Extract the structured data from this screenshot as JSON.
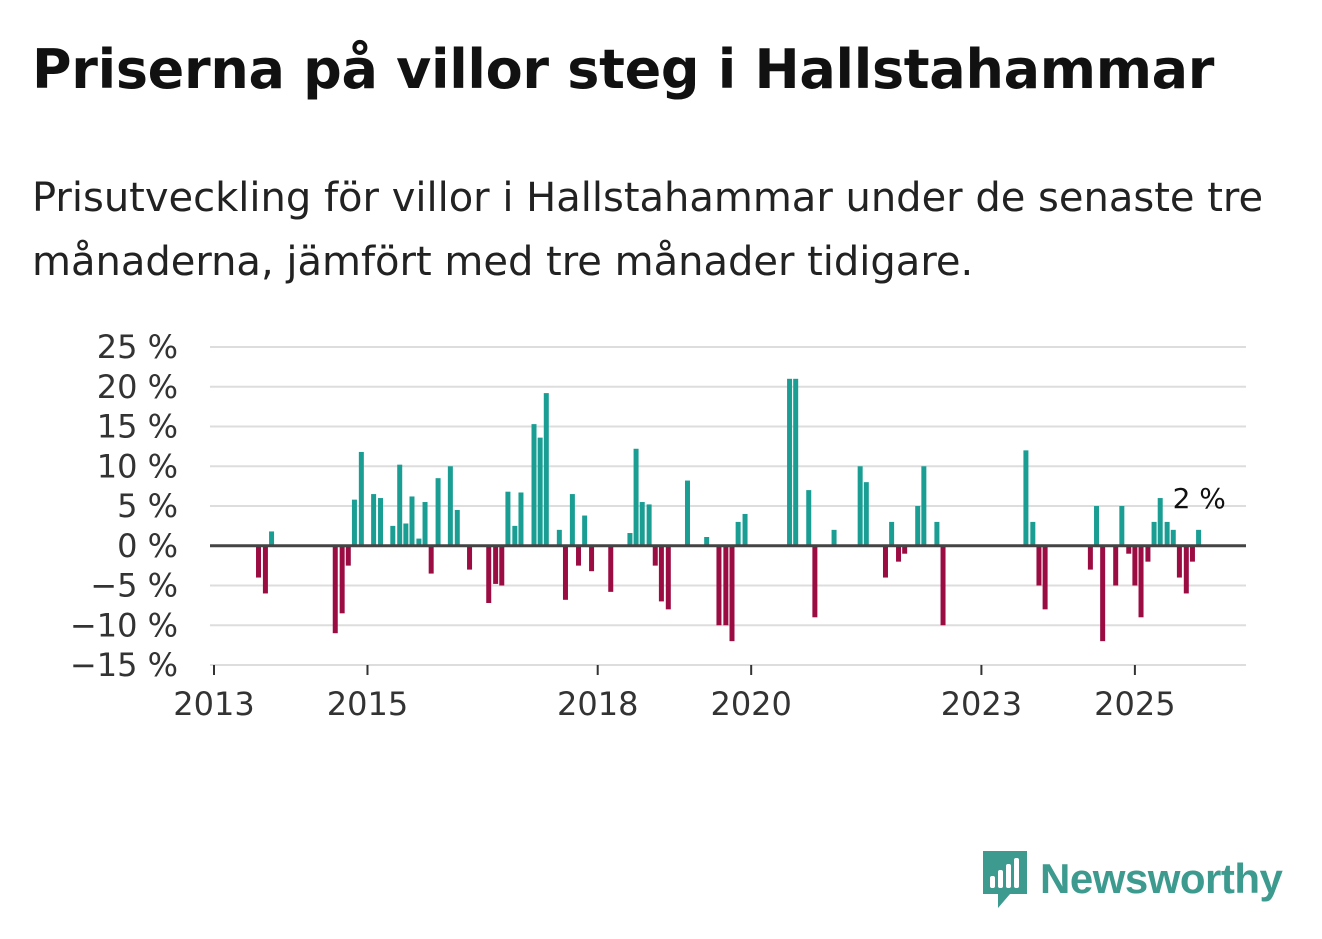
{
  "title": "Priserna på villor steg i Hallstahammar",
  "subtitle": "Prisutveckling för villor i Hallstahammar under de senaste tre månaderna, jämfört med tre månader tidigare.",
  "brand": "Newsworthy",
  "colors": {
    "positive": "#1a9e94",
    "negative": "#9b0c43",
    "grid": "#dddddd",
    "zero": "#444444"
  },
  "chart_data": {
    "type": "bar",
    "ylim": [
      -15,
      25
    ],
    "yticks": [
      25,
      20,
      15,
      10,
      5,
      0,
      -5,
      -10,
      -15
    ],
    "ytick_labels": [
      "25 %",
      "20 %",
      "15 %",
      "10 %",
      "5 %",
      "0 %",
      "−5 %",
      "−10 %",
      "−15 %"
    ],
    "xticks": [
      2013,
      2015,
      2018,
      2020,
      2023,
      2025
    ],
    "xtick_labels": [
      "2013",
      "2015",
      "2018",
      "2020",
      "2023",
      "2025"
    ],
    "xlim": [
      2013.0,
      2026.5
    ],
    "last_label": "2 %",
    "series": [
      {
        "x": 2013.58,
        "value": -4
      },
      {
        "x": 2013.67,
        "value": -6
      },
      {
        "x": 2013.75,
        "value": 1.8
      },
      {
        "x": 2014.58,
        "value": -11
      },
      {
        "x": 2014.67,
        "value": -8.5
      },
      {
        "x": 2014.75,
        "value": -2.5
      },
      {
        "x": 2014.83,
        "value": 5.8
      },
      {
        "x": 2014.92,
        "value": 11.8
      },
      {
        "x": 2015.08,
        "value": 6.5
      },
      {
        "x": 2015.17,
        "value": 6
      },
      {
        "x": 2015.33,
        "value": 2.5
      },
      {
        "x": 2015.42,
        "value": 10.2
      },
      {
        "x": 2015.5,
        "value": 2.8
      },
      {
        "x": 2015.58,
        "value": 6.2
      },
      {
        "x": 2015.67,
        "value": 0.9
      },
      {
        "x": 2015.75,
        "value": 5.5
      },
      {
        "x": 2015.83,
        "value": -3.5
      },
      {
        "x": 2015.92,
        "value": 8.5
      },
      {
        "x": 2016.08,
        "value": 10
      },
      {
        "x": 2016.17,
        "value": 4.5
      },
      {
        "x": 2016.33,
        "value": -3
      },
      {
        "x": 2016.58,
        "value": -7.2
      },
      {
        "x": 2016.67,
        "value": -4.8
      },
      {
        "x": 2016.75,
        "value": -5
      },
      {
        "x": 2016.83,
        "value": 6.8
      },
      {
        "x": 2016.92,
        "value": 2.5
      },
      {
        "x": 2017.0,
        "value": 6.7
      },
      {
        "x": 2017.17,
        "value": 15.3
      },
      {
        "x": 2017.25,
        "value": 13.6
      },
      {
        "x": 2017.33,
        "value": 19.2
      },
      {
        "x": 2017.5,
        "value": 2
      },
      {
        "x": 2017.58,
        "value": -6.8
      },
      {
        "x": 2017.67,
        "value": 6.5
      },
      {
        "x": 2017.75,
        "value": -2.5
      },
      {
        "x": 2017.83,
        "value": 3.8
      },
      {
        "x": 2017.92,
        "value": -3.2
      },
      {
        "x": 2018.17,
        "value": -5.8
      },
      {
        "x": 2018.42,
        "value": 1.6
      },
      {
        "x": 2018.5,
        "value": 12.2
      },
      {
        "x": 2018.58,
        "value": 5.5
      },
      {
        "x": 2018.67,
        "value": 5.2
      },
      {
        "x": 2018.75,
        "value": -2.5
      },
      {
        "x": 2018.83,
        "value": -7
      },
      {
        "x": 2018.92,
        "value": -8
      },
      {
        "x": 2019.17,
        "value": 8.2
      },
      {
        "x": 2019.42,
        "value": 1.1
      },
      {
        "x": 2019.58,
        "value": -10
      },
      {
        "x": 2019.67,
        "value": -10
      },
      {
        "x": 2019.75,
        "value": -12
      },
      {
        "x": 2019.83,
        "value": 3
      },
      {
        "x": 2019.92,
        "value": 4
      },
      {
        "x": 2020.5,
        "value": 21
      },
      {
        "x": 2020.58,
        "value": 21
      },
      {
        "x": 2020.75,
        "value": 7
      },
      {
        "x": 2020.83,
        "value": -9
      },
      {
        "x": 2021.08,
        "value": 2
      },
      {
        "x": 2021.42,
        "value": 10
      },
      {
        "x": 2021.5,
        "value": 8
      },
      {
        "x": 2021.75,
        "value": -4
      },
      {
        "x": 2021.83,
        "value": 3
      },
      {
        "x": 2021.92,
        "value": -2
      },
      {
        "x": 2022.0,
        "value": -1
      },
      {
        "x": 2022.17,
        "value": 5
      },
      {
        "x": 2022.25,
        "value": 10
      },
      {
        "x": 2022.42,
        "value": 3
      },
      {
        "x": 2022.5,
        "value": -10
      },
      {
        "x": 2023.58,
        "value": 12
      },
      {
        "x": 2023.67,
        "value": 3
      },
      {
        "x": 2023.75,
        "value": -5
      },
      {
        "x": 2023.83,
        "value": -8
      },
      {
        "x": 2024.42,
        "value": -3
      },
      {
        "x": 2024.5,
        "value": 5
      },
      {
        "x": 2024.58,
        "value": -12
      },
      {
        "x": 2024.75,
        "value": -5
      },
      {
        "x": 2024.83,
        "value": 5
      },
      {
        "x": 2024.92,
        "value": -1
      },
      {
        "x": 2025.0,
        "value": -5
      },
      {
        "x": 2025.08,
        "value": -9
      },
      {
        "x": 2025.17,
        "value": -2
      },
      {
        "x": 2025.25,
        "value": 3
      },
      {
        "x": 2025.33,
        "value": 6
      },
      {
        "x": 2025.42,
        "value": 3
      },
      {
        "x": 2025.5,
        "value": 2
      },
      {
        "x": 2025.58,
        "value": -4
      },
      {
        "x": 2025.67,
        "value": -6
      },
      {
        "x": 2025.75,
        "value": -2
      },
      {
        "x": 2025.83,
        "value": 2
      }
    ]
  }
}
